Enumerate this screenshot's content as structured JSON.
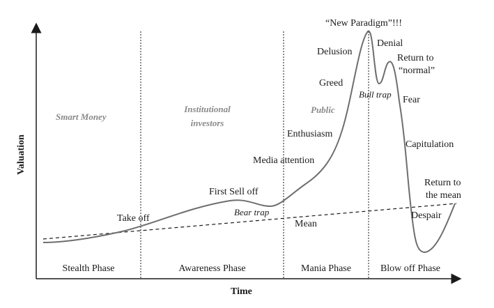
{
  "axes": {
    "x_label": "Time",
    "y_label": "Valuation"
  },
  "phases": [
    "Stealth Phase",
    "Awareness Phase",
    "Mania Phase",
    "Blow off Phase"
  ],
  "groups": {
    "smart_money": "Smart Money",
    "institutional_line1": "Institutional",
    "institutional_line2": "investors",
    "public": "Public"
  },
  "labels": {
    "take_off": "Take off",
    "first_sell_off": "First Sell off",
    "bear_trap": "Bear trap",
    "mean": "Mean",
    "media_attention": "Media attention",
    "enthusiasm": "Enthusiasm",
    "greed": "Greed",
    "delusion": "Delusion",
    "new_paradigm": "“New Paradigm”!!!",
    "bull_trap": "Bull trap",
    "denial": "Denial",
    "return_normal_line1": "Return to",
    "return_normal_line2": "“normal”",
    "fear": "Fear",
    "capitulation": "Capitulation",
    "return_mean_line1": "Return to",
    "return_mean_line2": "the mean",
    "despair": "Despair"
  },
  "colors": {
    "curve": "#6e6e6e",
    "axis": "#1a1a1a",
    "group_text": "#8a8a8a"
  }
}
